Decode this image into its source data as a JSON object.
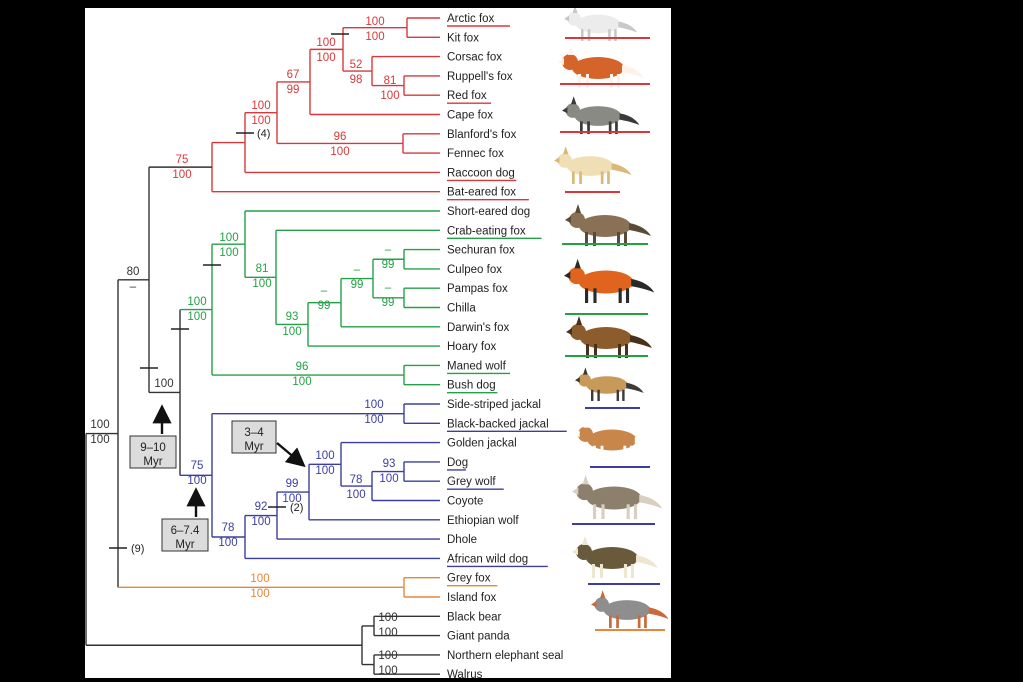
{
  "colors": {
    "red": "#d8383b",
    "green": "#26a046",
    "blue": "#3b3ea0",
    "orange": "#e8873a",
    "black": "#333333",
    "background": "#000000",
    "panel": "#ffffff"
  },
  "taxa": [
    {
      "name": "Arctic fox",
      "underlined": true,
      "color": "red"
    },
    {
      "name": "Kit fox",
      "underlined": false,
      "color": "red"
    },
    {
      "name": "Corsac fox",
      "underlined": false,
      "color": "red"
    },
    {
      "name": "Ruppell's fox",
      "underlined": false,
      "color": "red"
    },
    {
      "name": "Red fox",
      "underlined": true,
      "color": "red"
    },
    {
      "name": "Cape fox",
      "underlined": false,
      "color": "red"
    },
    {
      "name": "Blanford's fox",
      "underlined": false,
      "color": "red"
    },
    {
      "name": "Fennec fox",
      "underlined": false,
      "color": "red"
    },
    {
      "name": "Raccoon dog",
      "underlined": true,
      "color": "red"
    },
    {
      "name": "Bat-eared fox",
      "underlined": true,
      "color": "red"
    },
    {
      "name": "Short-eared dog",
      "underlined": false,
      "color": "green"
    },
    {
      "name": "Crab-eating fox",
      "underlined": true,
      "color": "green"
    },
    {
      "name": "Sechuran fox",
      "underlined": false,
      "color": "green"
    },
    {
      "name": "Culpeo fox",
      "underlined": false,
      "color": "green"
    },
    {
      "name": "Pampas fox",
      "underlined": false,
      "color": "green"
    },
    {
      "name": "Chilla",
      "underlined": false,
      "color": "green"
    },
    {
      "name": "Darwin's fox",
      "underlined": false,
      "color": "green"
    },
    {
      "name": "Hoary fox",
      "underlined": false,
      "color": "green"
    },
    {
      "name": "Maned wolf",
      "underlined": true,
      "color": "green"
    },
    {
      "name": "Bush dog",
      "underlined": true,
      "color": "green"
    },
    {
      "name": "Side-striped jackal",
      "underlined": false,
      "color": "blue"
    },
    {
      "name": "Black-backed jackal",
      "underlined": true,
      "color": "blue"
    },
    {
      "name": "Golden jackal",
      "underlined": false,
      "color": "blue"
    },
    {
      "name": "Dog",
      "underlined": true,
      "color": "blue"
    },
    {
      "name": "Grey wolf",
      "underlined": true,
      "color": "blue"
    },
    {
      "name": "Coyote",
      "underlined": false,
      "color": "blue"
    },
    {
      "name": "Ethiopian wolf",
      "underlined": false,
      "color": "blue"
    },
    {
      "name": "Dhole",
      "underlined": false,
      "color": "blue"
    },
    {
      "name": "African wild dog",
      "underlined": true,
      "color": "blue"
    },
    {
      "name": "Grey fox",
      "underlined": true,
      "color": "orange"
    },
    {
      "name": "Island fox",
      "underlined": false,
      "color": "orange"
    },
    {
      "name": "Black bear",
      "underlined": false,
      "color": "black"
    },
    {
      "name": "Giant panda",
      "underlined": false,
      "color": "black"
    },
    {
      "name": "Northern elephant seal",
      "underlined": false,
      "color": "black"
    },
    {
      "name": "Walrus",
      "underlined": false,
      "color": "black"
    }
  ],
  "support_values": {
    "arctic_kit": [
      "100",
      "100"
    ],
    "arctic_to_ruppell": [
      "100",
      "100"
    ],
    "corsac_ruppell_red": [
      "52",
      "98"
    ],
    "ruppell_red": [
      "81",
      "100"
    ],
    "vulpes_core": [
      "67",
      "99"
    ],
    "vulpes": [
      "100",
      "100"
    ],
    "blanford_fennec": [
      "96",
      "100"
    ],
    "red_clade": [
      "75",
      "100"
    ],
    "red_and_south_american": [
      "80",
      "–"
    ],
    "south_american_core": [
      "100",
      "100"
    ],
    "crab_eating_group": [
      "81",
      "100"
    ],
    "lycalopex": [
      "93",
      "100"
    ],
    "lycalopex_inner": [
      "–",
      "99"
    ],
    "lycalopex_pair_a": [
      "–",
      "99"
    ],
    "sechuran_culpeo": [
      "–",
      "99"
    ],
    "pampas_chilla": [
      "–",
      "99"
    ],
    "maned_bush": [
      "96",
      "100"
    ],
    "south_american": [
      "100",
      "100"
    ],
    "south_american_and_wolf_like": [
      "100",
      ""
    ],
    "wolf_like_and_jackals": [
      "75",
      "100"
    ],
    "jackals": [
      "100",
      "100"
    ],
    "wolf_like_78": [
      "78",
      "100"
    ],
    "dhole_group": [
      "92",
      "100"
    ],
    "ethiopian_group": [
      "99",
      "100"
    ],
    "canis_core": [
      "100",
      "100"
    ],
    "dog_wolf_coyote": [
      "78",
      "100"
    ],
    "dog_wolf": [
      "93",
      "100"
    ],
    "canidae": [
      "100",
      "100"
    ],
    "urocyon": [
      "100",
      "100"
    ],
    "bears": [
      "100",
      "100"
    ],
    "pinnipeds": [
      "100",
      "100"
    ]
  },
  "indel_notes": [
    "(4)",
    "(2)",
    "(9)"
  ],
  "time_boxes": [
    {
      "line1": "3–4",
      "line2": "Myr"
    },
    {
      "line1": "9–10",
      "line2": "Myr"
    },
    {
      "line1": "6–7.4",
      "line2": "Myr"
    }
  ],
  "illustrations": [
    {
      "name": "arctic-fox",
      "body": "#ececec",
      "accent": "#c8c8c8",
      "bar": "red"
    },
    {
      "name": "red-fox",
      "body": "#d4642a",
      "accent": "#fff1e6",
      "bar": "red"
    },
    {
      "name": "raccoon-dog",
      "body": "#8a8a84",
      "accent": "#3a3a3a",
      "bar": "red"
    },
    {
      "name": "fennec-fox",
      "body": "#f0dfb4",
      "accent": "#d9b878",
      "bar": "red"
    },
    {
      "name": "crab-eating-fox",
      "body": "#8a7156",
      "accent": "#5a4a38",
      "bar": "green"
    },
    {
      "name": "maned-wolf",
      "body": "#e0641e",
      "accent": "#2a2a2a",
      "bar": "green"
    },
    {
      "name": "bush-dog",
      "body": "#8c5c2c",
      "accent": "#4a3018",
      "bar": "green"
    },
    {
      "name": "black-backed-jackal",
      "body": "#c89a5a",
      "accent": "#3a3a3a",
      "bar": "blue"
    },
    {
      "name": "dog",
      "body": "#c8864a",
      "accent": "#ffffff",
      "bar": "blue"
    },
    {
      "name": "grey-wolf",
      "body": "#8c7f6c",
      "accent": "#d8cfc0",
      "bar": "blue"
    },
    {
      "name": "african-wild-dog",
      "body": "#6a5a3c",
      "accent": "#efe6d0",
      "bar": "blue"
    },
    {
      "name": "grey-fox",
      "body": "#8e8e8e",
      "accent": "#c96a3a",
      "bar": "orange"
    }
  ]
}
